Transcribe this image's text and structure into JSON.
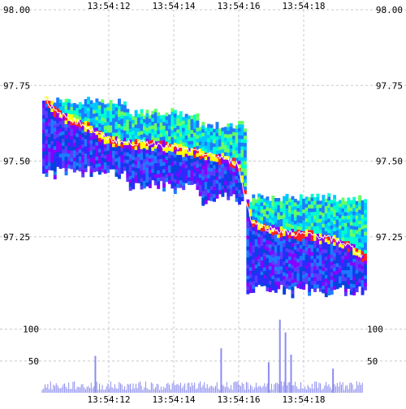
{
  "chart_data": {
    "type": "heatmap",
    "title": "",
    "xlabel": "",
    "ylabel": "",
    "time_ticks": [
      "13:54:12",
      "13:54:14",
      "13:54:16",
      "13:54:18"
    ],
    "price_axis": {
      "ylim": [
        97.0,
        98.0
      ],
      "ticks": [
        {
          "value": 98.0,
          "label": "98.00"
        },
        {
          "value": 97.75,
          "label": "97.75"
        },
        {
          "value": 97.5,
          "label": "97.50"
        },
        {
          "value": 97.25,
          "label": "97.25"
        }
      ]
    },
    "volume_axis": {
      "ylim": [
        0,
        120
      ],
      "ticks": [
        {
          "value": 100,
          "label": "100"
        },
        {
          "value": 50,
          "label": "50"
        }
      ]
    },
    "price_series": {
      "time_s": [
        0,
        0.5,
        1,
        1.5,
        2,
        2.5,
        3,
        3.5,
        4,
        4.5,
        5,
        5.5,
        6,
        6.5,
        7,
        7.2,
        7.5,
        8,
        8.5,
        9,
        9.5,
        10,
        10.5,
        11,
        11.5
      ],
      "mid": [
        97.72,
        97.66,
        97.64,
        97.62,
        97.59,
        97.57,
        97.56,
        97.56,
        97.56,
        97.55,
        97.54,
        97.53,
        97.52,
        97.51,
        97.49,
        97.4,
        97.3,
        97.28,
        97.27,
        97.26,
        97.26,
        97.25,
        97.24,
        97.22,
        97.18
      ]
    },
    "depth_bands": [
      {
        "t0": 0.0,
        "t1": 3.0,
        "top": 97.7,
        "bottom": 97.49
      },
      {
        "t0": 3.0,
        "t1": 5.5,
        "top": 97.66,
        "bottom": 97.44
      },
      {
        "t0": 5.5,
        "t1": 7.2,
        "top": 97.62,
        "bottom": 97.4
      },
      {
        "t0": 7.2,
        "t1": 11.5,
        "top": 97.38,
        "bottom": 97.1
      }
    ],
    "volume_spikes": [
      {
        "t": 1.9,
        "v": 58
      },
      {
        "t": 6.4,
        "v": 70
      },
      {
        "t": 8.1,
        "v": 48
      },
      {
        "t": 8.5,
        "v": 115
      },
      {
        "t": 8.7,
        "v": 95
      },
      {
        "t": 8.9,
        "v": 60
      },
      {
        "t": 10.4,
        "v": 38
      }
    ],
    "colors": {
      "grid": "#c8c8c8",
      "mid_line": "#ffffff",
      "volume": "#8c8cf0",
      "band_palette": [
        "#2b2bff",
        "#1d7bff",
        "#00c8ff",
        "#00ffd0",
        "#66ff66",
        "#ffff00",
        "#ff2020",
        "#8800ff",
        "#5a3cff",
        "#0044dd"
      ]
    }
  }
}
